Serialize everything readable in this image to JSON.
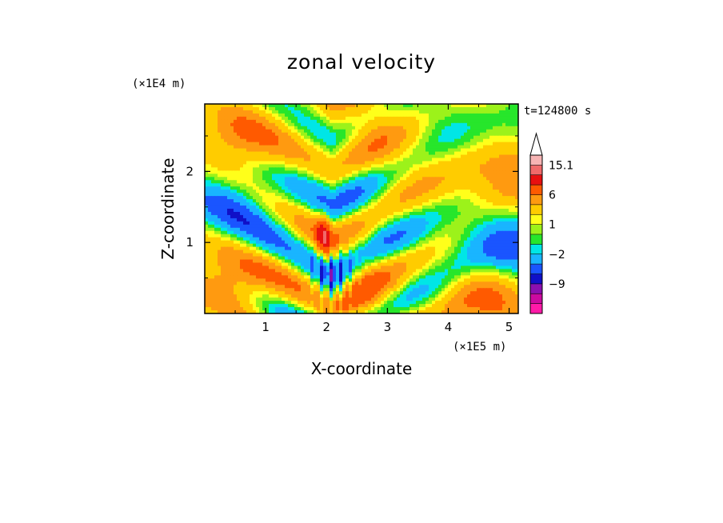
{
  "chart_data": {
    "type": "heatmap",
    "title": "zonal velocity",
    "xlabel": "X-coordinate",
    "ylabel": "Z-coordinate",
    "x_unit": "(×1E5 m)",
    "y_unit": "(×1E4 m)",
    "time_label": "t=124800 s",
    "xlim": [
      0,
      5.15
    ],
    "ylim": [
      0,
      2.95
    ],
    "x_ticks": [
      1,
      2,
      3,
      4,
      5
    ],
    "y_ticks": [
      1,
      2
    ],
    "x_tick_labels": [
      "1",
      "2",
      "3",
      "4",
      "5"
    ],
    "y_tick_labels": [
      "1",
      "2"
    ],
    "colorbar": {
      "levels": [
        -15,
        -12,
        -9,
        -6,
        -4,
        -2,
        -1,
        0,
        1,
        2,
        4,
        6,
        9,
        12,
        15.1
      ],
      "labeled": [
        {
          "value": 15.1,
          "label": "15.1"
        },
        {
          "value": 6,
          "label": "6"
        },
        {
          "value": 1,
          "label": "1"
        },
        {
          "value": -2,
          "label": "−2"
        },
        {
          "value": -9,
          "label": "−9"
        }
      ],
      "colors": [
        "#ff1aa8",
        "#cc0aa0",
        "#8a10b0",
        "#1010c8",
        "#1a55ff",
        "#19b5ff",
        "#00e6e6",
        "#27e62b",
        "#9cf21a",
        "#ffff1a",
        "#ffcc00",
        "#ff9a10",
        "#ff5a00",
        "#e81010",
        "#f06a6a",
        "#f7b4b4"
      ],
      "extend": "max"
    },
    "grid": false
  }
}
